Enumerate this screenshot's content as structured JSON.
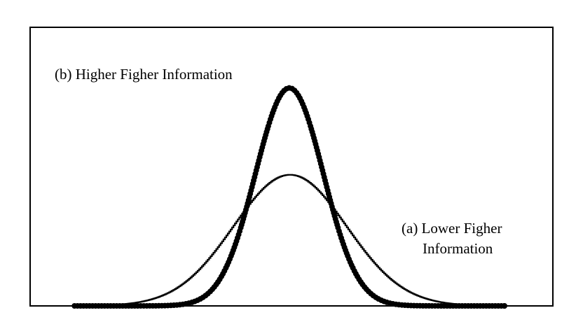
{
  "chart_data": {
    "type": "line",
    "title": "",
    "xlabel": "",
    "ylabel": "",
    "xlim": [
      -3.8,
      3.8
    ],
    "ylim": [
      0,
      0.85
    ],
    "grid": false,
    "legend": "none",
    "series": [
      {
        "name": "(a) Lower Figher Information",
        "style": "thin-stepped",
        "color": "#000000",
        "distribution": "gaussian",
        "mean": 0,
        "sd": 1,
        "peak": 0.4
      },
      {
        "name": "(b) Higher Figher Information",
        "style": "dotted-thick",
        "color": "#000000",
        "distribution": "gaussian",
        "mean": 0,
        "sd": 0.6,
        "peak": 0.665
      }
    ],
    "annotations": {
      "a_line1": "(a) Lower Figher",
      "a_line2": "Information",
      "b_line1": "(b) Higher Figher Information"
    }
  }
}
